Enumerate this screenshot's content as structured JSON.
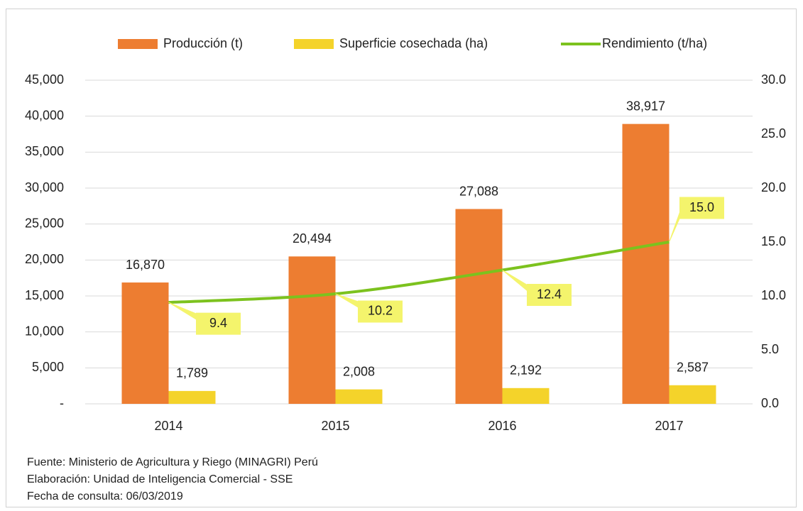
{
  "chart_data": {
    "type": "bar",
    "categories": [
      "2014",
      "2015",
      "2016",
      "2017"
    ],
    "series": [
      {
        "name": "Producción (t)",
        "color": "#ed7d31",
        "values": [
          16870,
          20494,
          27088,
          38917
        ],
        "value_labels": [
          "16,870",
          "20,494",
          "27,088",
          "38,917"
        ]
      },
      {
        "name": "Superficie cosechada (ha)",
        "color": "#f4d32a",
        "values": [
          1789,
          2008,
          2192,
          2587
        ],
        "value_labels": [
          "1,789",
          "2,008",
          "2,192",
          "2,587"
        ]
      },
      {
        "name": "Rendimiento (t/ha)",
        "color": "#7cc21e",
        "type": "line",
        "axis": "y2",
        "values": [
          9.4,
          10.2,
          12.4,
          15.0
        ],
        "value_labels": [
          "9.4",
          "10.2",
          "12.4",
          "15.0"
        ]
      }
    ],
    "ylim": [
      0,
      45000
    ],
    "yticks": [
      {
        "value": 0,
        "label": "-"
      },
      {
        "value": 5000,
        "label": "5,000"
      },
      {
        "value": 10000,
        "label": "10,000"
      },
      {
        "value": 15000,
        "label": "15,000"
      },
      {
        "value": 20000,
        "label": "20,000"
      },
      {
        "value": 25000,
        "label": "25,000"
      },
      {
        "value": 30000,
        "label": "30,000"
      },
      {
        "value": 35000,
        "label": "35,000"
      },
      {
        "value": 40000,
        "label": "40,000"
      },
      {
        "value": 45000,
        "label": "45,000"
      }
    ],
    "y2lim": [
      0,
      30
    ],
    "y2ticks": [
      {
        "value": 0,
        "label": "0.0"
      },
      {
        "value": 5,
        "label": "5.0"
      },
      {
        "value": 10,
        "label": "10.0"
      },
      {
        "value": 15,
        "label": "15.0"
      },
      {
        "value": 20,
        "label": "20.0"
      },
      {
        "value": 25,
        "label": "25.0"
      },
      {
        "value": 30,
        "label": "30.0"
      }
    ],
    "grid": true,
    "legend": "top",
    "notes": [
      "Fuente: Ministerio de Agricultura y Riego (MINAGRI) Perú",
      "Elaboración: Unidad de Inteligencia Comercial - SSE",
      "Fecha de consulta: 06/03/2019"
    ]
  }
}
